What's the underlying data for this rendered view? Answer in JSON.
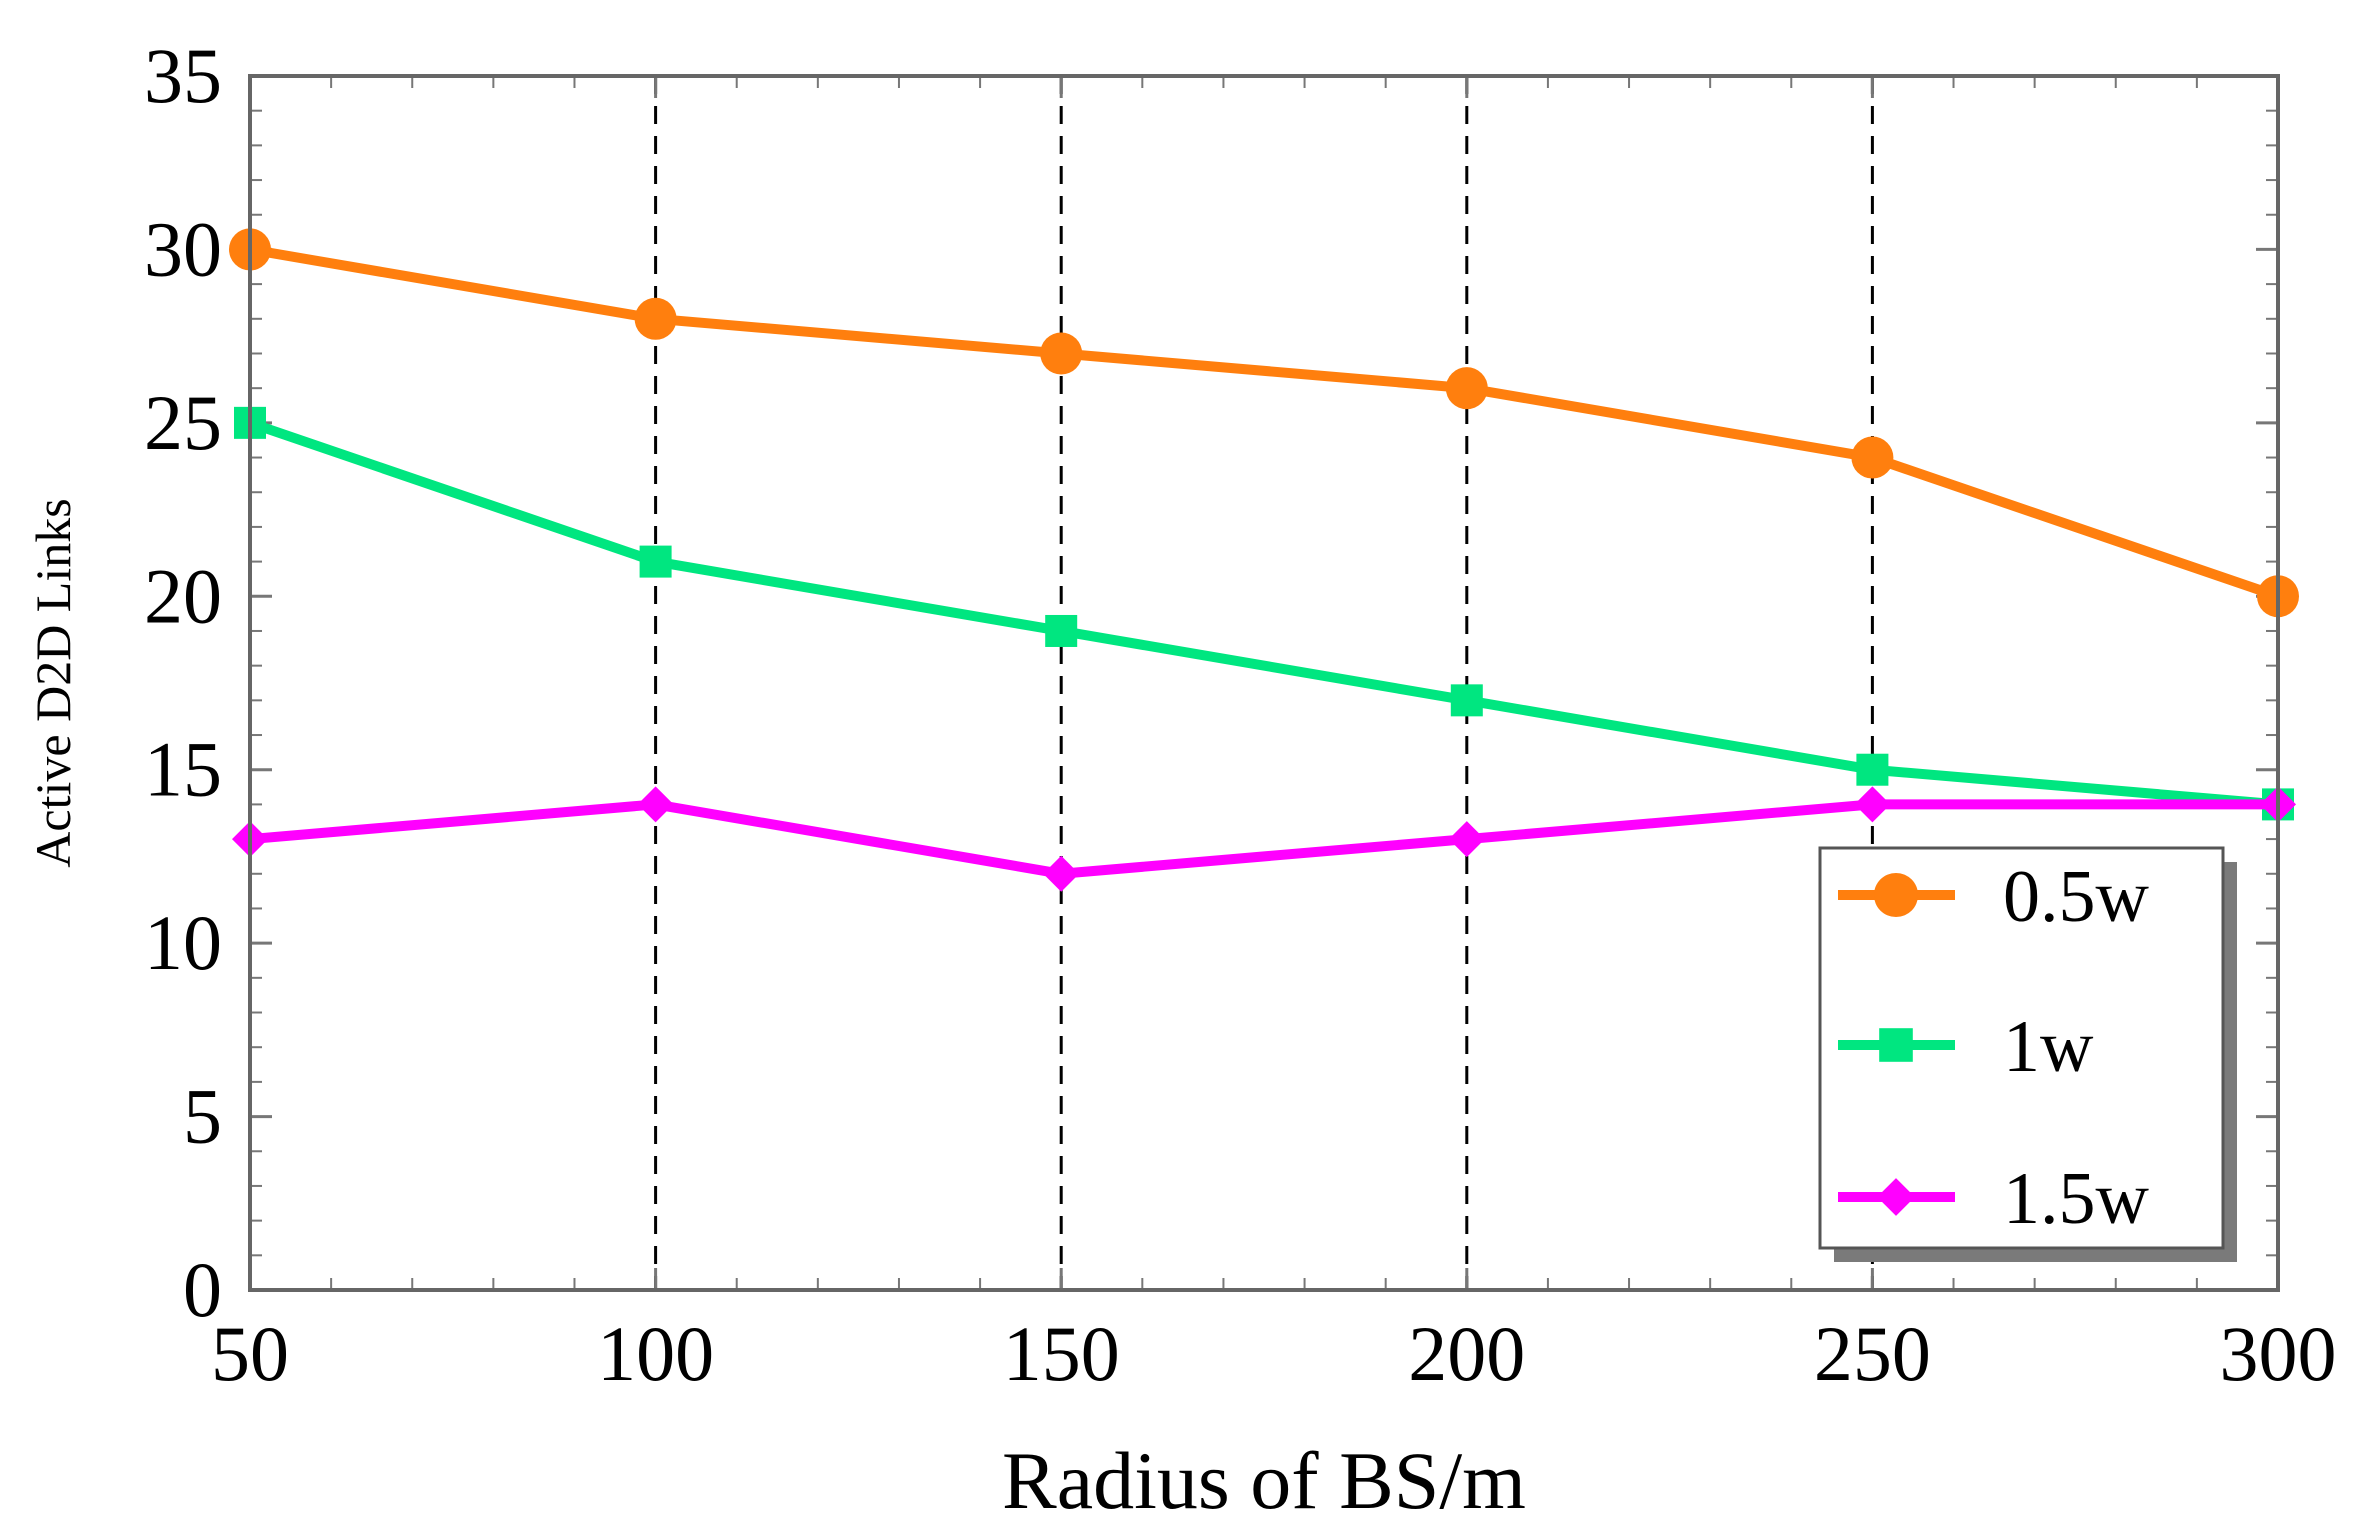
{
  "chart_data": {
    "type": "line",
    "title": "",
    "xlabel": "Radius of BS/m",
    "ylabel": "Active D2D Links",
    "x": [
      50,
      100,
      150,
      200,
      250,
      300
    ],
    "xlim": [
      50,
      300
    ],
    "ylim": [
      0,
      35
    ],
    "xticks": [
      50,
      100,
      150,
      200,
      250,
      300
    ],
    "yticks": [
      0,
      5,
      10,
      15,
      20,
      25,
      30,
      35
    ],
    "vertical_gridlines": [
      100,
      150,
      200,
      250
    ],
    "grid_style": "dashed vertical",
    "legend_position": "bottom-right",
    "series": [
      {
        "name": "0.5w",
        "values": [
          30,
          28,
          27,
          26,
          24,
          20
        ],
        "color": "#ff7f0e",
        "marker": "circle"
      },
      {
        "name": "1w",
        "values": [
          25,
          21,
          19,
          17,
          15,
          14
        ],
        "color": "#00e680",
        "marker": "square"
      },
      {
        "name": "1.5w",
        "values": [
          13,
          14,
          12,
          13,
          14,
          14
        ],
        "color": "#ff00ff",
        "marker": "diamond"
      }
    ]
  }
}
